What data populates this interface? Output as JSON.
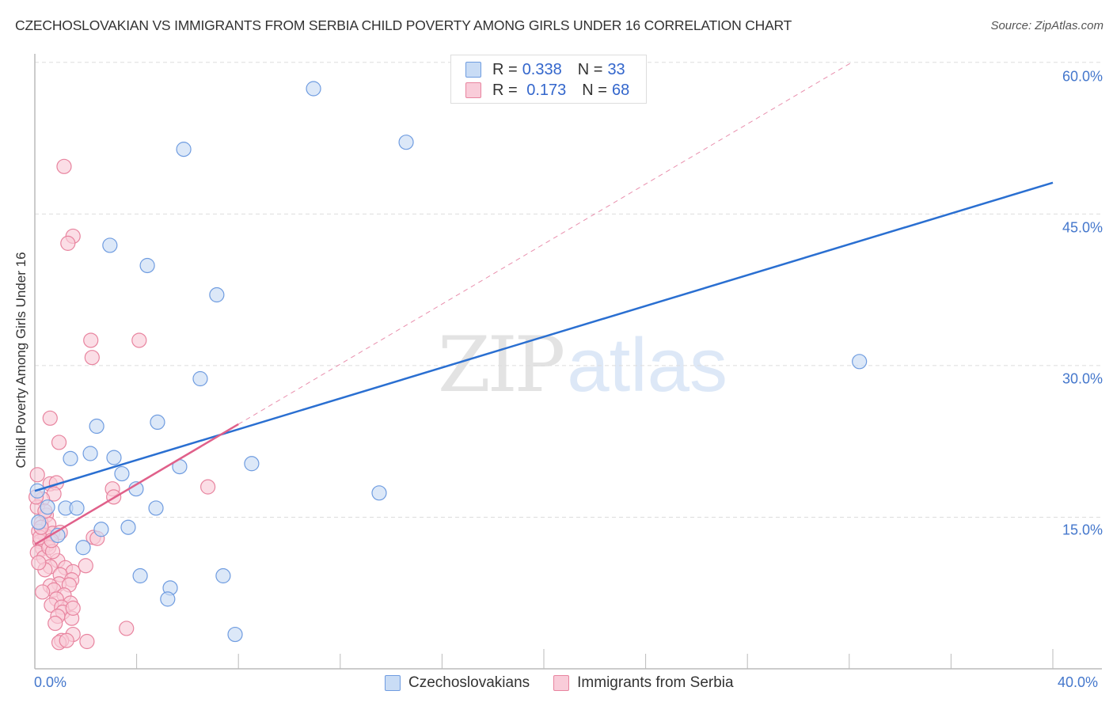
{
  "header": {
    "title": "CZECHOSLOVAKIAN VS IMMIGRANTS FROM SERBIA CHILD POVERTY AMONG GIRLS UNDER 16 CORRELATION CHART",
    "source": "Source: ZipAtlas.com"
  },
  "watermark": {
    "zip": "ZIP",
    "atlas": "atlas"
  },
  "legend_top": {
    "rows": [
      {
        "r_label": "R = ",
        "r_value": "0.338",
        "n_label": "N = ",
        "n_value": "33",
        "color": "#a8c8f0"
      },
      {
        "r_label": "R = ",
        "r_value": " 0.173",
        "n_label": "N = ",
        "n_value": "68",
        "color": "#f7b8ca"
      }
    ]
  },
  "legend_bottom": {
    "items": [
      {
        "label": "Czechoslovakians",
        "color": "#a8c8f0"
      },
      {
        "label": "Immigrants from Serbia",
        "color": "#f7b8ca"
      }
    ]
  },
  "axes": {
    "ylabel": "Child Poverty Among Girls Under 16",
    "y_ticks": [
      "60.0%",
      "45.0%",
      "30.0%",
      "15.0%"
    ],
    "x_ticks": [
      "0.0%",
      "40.0%"
    ]
  },
  "colors": {
    "blue_fill": "#c9dcf5",
    "blue_stroke": "#6f9ce0",
    "blue_line": "#2a6fd1",
    "pink_fill": "#f9ccd9",
    "pink_stroke": "#e8849f",
    "pink_line": "#e0608a",
    "grid": "#dddddd",
    "axis": "#bbbbbb",
    "tick_text": "#4477cc"
  },
  "chart_data": {
    "type": "scatter",
    "title": "CZECHOSLOVAKIAN VS IMMIGRANTS FROM SERBIA CHILD POVERTY AMONG GIRLS UNDER 16 CORRELATION CHART",
    "xlabel": "",
    "ylabel": "Child Poverty Among Girls Under 16",
    "xlim": [
      0,
      40
    ],
    "ylim": [
      0,
      62
    ],
    "x_tick_labels": [
      "0.0%",
      "40.0%"
    ],
    "y_tick_labels": [
      "15.0%",
      "30.0%",
      "45.0%",
      "60.0%"
    ],
    "grid": true,
    "legend_position": "top-center and bottom",
    "series": [
      {
        "name": "Czechoslovakians",
        "R": 0.338,
        "N": 33,
        "trend": {
          "x": [
            0,
            40
          ],
          "y": [
            17.6,
            48.1
          ]
        },
        "points": [
          [
            10.95,
            57.4
          ],
          [
            5.85,
            51.4
          ],
          [
            14.59,
            52.1
          ],
          [
            2.95,
            41.9
          ],
          [
            4.42,
            39.9
          ],
          [
            7.15,
            37.0
          ],
          [
            32.4,
            30.4
          ],
          [
            6.5,
            28.7
          ],
          [
            2.43,
            24.0
          ],
          [
            4.82,
            24.4
          ],
          [
            1.4,
            20.8
          ],
          [
            2.18,
            21.3
          ],
          [
            3.11,
            20.9
          ],
          [
            8.52,
            20.3
          ],
          [
            3.42,
            19.3
          ],
          [
            5.69,
            20.0
          ],
          [
            3.98,
            17.8
          ],
          [
            13.53,
            17.4
          ],
          [
            1.21,
            15.9
          ],
          [
            1.65,
            15.9
          ],
          [
            4.76,
            15.9
          ],
          [
            2.61,
            13.8
          ],
          [
            3.67,
            14.0
          ],
          [
            0.9,
            13.2
          ],
          [
            1.9,
            12.0
          ],
          [
            4.14,
            9.2
          ],
          [
            7.4,
            9.2
          ],
          [
            5.32,
            8.0
          ],
          [
            5.22,
            6.9
          ],
          [
            7.87,
            3.4
          ],
          [
            0.1,
            17.6
          ],
          [
            0.5,
            16.0
          ],
          [
            0.15,
            14.5
          ]
        ]
      },
      {
        "name": "Immigrants from Serbia",
        "R": 0.173,
        "N": 68,
        "trend": {
          "x": [
            0,
            8.0
          ],
          "y": [
            12.3,
            24.2
          ]
        },
        "trend_extension_dashed": {
          "x": [
            8.0,
            32.1
          ],
          "y": [
            24.2,
            60.0
          ]
        },
        "points": [
          [
            1.15,
            49.7
          ],
          [
            1.5,
            42.8
          ],
          [
            1.3,
            42.1
          ],
          [
            2.2,
            32.5
          ],
          [
            4.1,
            32.5
          ],
          [
            2.25,
            30.8
          ],
          [
            0.6,
            24.8
          ],
          [
            0.95,
            22.4
          ],
          [
            6.8,
            18.0
          ],
          [
            3.05,
            17.8
          ],
          [
            3.1,
            17.0
          ],
          [
            0.1,
            19.2
          ],
          [
            0.6,
            18.3
          ],
          [
            0.85,
            18.4
          ],
          [
            0.75,
            17.3
          ],
          [
            0.3,
            16.8
          ],
          [
            0.1,
            16.0
          ],
          [
            0.45,
            15.2
          ],
          [
            0.25,
            14.4
          ],
          [
            0.55,
            14.3
          ],
          [
            0.15,
            13.6
          ],
          [
            0.4,
            13.2
          ],
          [
            0.7,
            13.4
          ],
          [
            1.0,
            13.5
          ],
          [
            0.2,
            12.6
          ],
          [
            0.5,
            12.3
          ],
          [
            0.3,
            11.9
          ],
          [
            0.1,
            11.5
          ],
          [
            0.35,
            11.0
          ],
          [
            2.3,
            13.0
          ],
          [
            2.45,
            12.9
          ],
          [
            0.9,
            10.7
          ],
          [
            0.6,
            10.1
          ],
          [
            1.2,
            10.0
          ],
          [
            0.4,
            9.8
          ],
          [
            1.5,
            9.6
          ],
          [
            2.0,
            10.2
          ],
          [
            1.0,
            9.3
          ],
          [
            1.45,
            8.8
          ],
          [
            0.95,
            8.4
          ],
          [
            1.35,
            8.3
          ],
          [
            0.6,
            8.2
          ],
          [
            0.75,
            7.8
          ],
          [
            0.3,
            7.6
          ],
          [
            1.15,
            7.3
          ],
          [
            0.85,
            6.9
          ],
          [
            1.4,
            6.5
          ],
          [
            0.65,
            6.3
          ],
          [
            1.05,
            6.1
          ],
          [
            1.1,
            5.6
          ],
          [
            0.9,
            5.2
          ],
          [
            1.45,
            5.0
          ],
          [
            1.5,
            6.0
          ],
          [
            0.8,
            4.5
          ],
          [
            3.6,
            4.0
          ],
          [
            1.5,
            3.4
          ],
          [
            1.05,
            2.8
          ],
          [
            0.95,
            2.6
          ],
          [
            2.05,
            2.7
          ],
          [
            1.25,
            2.8
          ],
          [
            0.2,
            13.0
          ],
          [
            0.55,
            12.0
          ],
          [
            0.15,
            10.5
          ],
          [
            0.7,
            11.6
          ],
          [
            0.25,
            14.0
          ],
          [
            0.4,
            15.6
          ],
          [
            0.05,
            17.0
          ],
          [
            0.65,
            12.7
          ]
        ]
      }
    ]
  }
}
